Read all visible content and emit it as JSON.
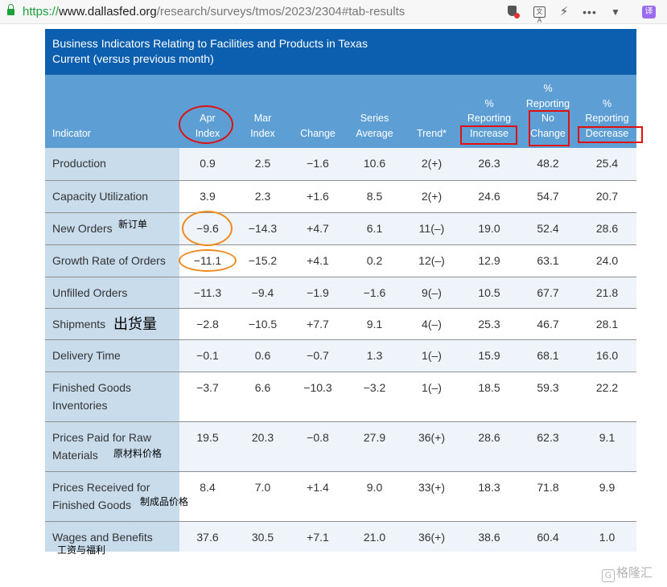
{
  "browser": {
    "url_scheme": "https://",
    "url_domain": "www.dallasfed.org",
    "url_path": "/research/surveys/tmos/2023/2304#tab-results",
    "icons": [
      "lock-icon",
      "shield-icon",
      "translate-icon",
      "bolt-icon",
      "more-icon",
      "chevron-down-icon",
      "translate-extension-icon"
    ],
    "extension_label": "译",
    "translate_label": "文A"
  },
  "table": {
    "title_line1": "Business Indicators Relating to Facilities and Products in Texas",
    "title_line2": "Current (versus previous month)",
    "headers": {
      "indicator": "Indicator",
      "apr": [
        "Apr",
        "Index"
      ],
      "mar": [
        "Mar",
        "Index"
      ],
      "change": "Change",
      "series": [
        "Series",
        "Average"
      ],
      "trend": "Trend*",
      "increase": [
        "%",
        "Reporting",
        "Increase"
      ],
      "nochange": [
        "%",
        "Reporting",
        "No",
        "Change"
      ],
      "decrease": [
        "%",
        "Reporting",
        "Decrease"
      ]
    },
    "rows": [
      {
        "indicator": [
          "Production"
        ],
        "apr": "0.9",
        "mar": "2.5",
        "change": "−1.6",
        "series": "10.6",
        "trend": "2(+)",
        "increase": "26.3",
        "nochange": "48.2",
        "decrease": "25.4"
      },
      {
        "indicator": [
          "Capacity Utilization"
        ],
        "apr": "3.9",
        "mar": "2.3",
        "change": "+1.6",
        "series": "8.5",
        "trend": "2(+)",
        "increase": "24.6",
        "nochange": "54.7",
        "decrease": "20.7"
      },
      {
        "indicator": [
          "New Orders"
        ],
        "apr": "−9.6",
        "mar": "−14.3",
        "change": "+4.7",
        "series": "6.1",
        "trend": "11(–)",
        "increase": "19.0",
        "nochange": "52.4",
        "decrease": "28.6"
      },
      {
        "indicator": [
          "Growth Rate of Orders"
        ],
        "apr": "−11.1",
        "mar": "−15.2",
        "change": "+4.1",
        "series": "0.2",
        "trend": "12(–)",
        "increase": "12.9",
        "nochange": "63.1",
        "decrease": "24.0"
      },
      {
        "indicator": [
          "Unfilled Orders"
        ],
        "apr": "−11.3",
        "mar": "−9.4",
        "change": "−1.9",
        "series": "−1.6",
        "trend": "9(–)",
        "increase": "10.5",
        "nochange": "67.7",
        "decrease": "21.8"
      },
      {
        "indicator": [
          "Shipments"
        ],
        "apr": "−2.8",
        "mar": "−10.5",
        "change": "+7.7",
        "series": "9.1",
        "trend": "4(–)",
        "increase": "25.3",
        "nochange": "46.7",
        "decrease": "28.1"
      },
      {
        "indicator": [
          "Delivery Time"
        ],
        "apr": "−0.1",
        "mar": "0.6",
        "change": "−0.7",
        "series": "1.3",
        "trend": "1(–)",
        "increase": "15.9",
        "nochange": "68.1",
        "decrease": "16.0"
      },
      {
        "indicator": [
          "Finished Goods",
          "Inventories"
        ],
        "apr": "−3.7",
        "mar": "6.6",
        "change": "−10.3",
        "series": "−3.2",
        "trend": "1(–)",
        "increase": "18.5",
        "nochange": "59.3",
        "decrease": "22.2"
      },
      {
        "indicator": [
          "Prices Paid for Raw",
          "Materials"
        ],
        "apr": "19.5",
        "mar": "20.3",
        "change": "−0.8",
        "series": "27.9",
        "trend": "36(+)",
        "increase": "28.6",
        "nochange": "62.3",
        "decrease": "9.1"
      },
      {
        "indicator": [
          "Prices Received for",
          "Finished Goods"
        ],
        "apr": "8.4",
        "mar": "7.0",
        "change": "+1.4",
        "series": "9.0",
        "trend": "33(+)",
        "increase": "18.3",
        "nochange": "71.8",
        "decrease": "9.9"
      },
      {
        "indicator": [
          "Wages and Benefits"
        ],
        "apr": "37.6",
        "mar": "30.5",
        "change": "+7.1",
        "series": "21.0",
        "trend": "36(+)",
        "increase": "38.6",
        "nochange": "60.4",
        "decrease": "1.0"
      }
    ]
  },
  "annotations": {
    "new_orders": "新订单",
    "shipments": "出货量",
    "raw_materials": "原材料价格",
    "finished_goods": "制成品价格",
    "wages": "工资与福利",
    "colors": {
      "red": "#e01010",
      "orange": "#f08a1e"
    }
  },
  "watermark": {
    "logo": "G",
    "text": "格隆汇"
  }
}
